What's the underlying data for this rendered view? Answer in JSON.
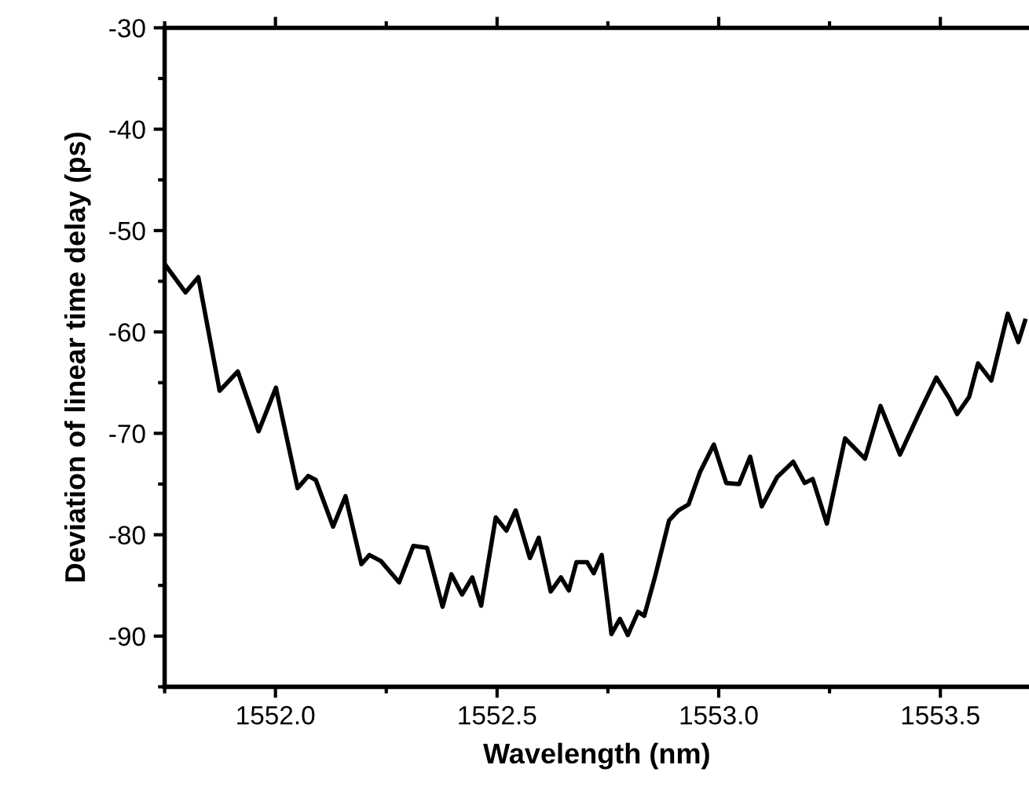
{
  "chart_data": {
    "type": "line",
    "xlabel": "Wavelength (nm)",
    "ylabel": "Deviation of linear time delay (ps)",
    "xlim": [
      1551.75,
      1553.7
    ],
    "ylim": [
      -95,
      -30
    ],
    "xticks": [
      {
        "value": 1552.0,
        "label": "1552.0"
      },
      {
        "value": 1552.5,
        "label": "1552.5"
      },
      {
        "value": 1553.0,
        "label": "1553.0"
      },
      {
        "value": 1553.5,
        "label": "1553.5"
      }
    ],
    "yticks": [
      -90,
      -80,
      -70,
      -60,
      -50,
      -40,
      -30
    ],
    "grid": false,
    "legend": false,
    "marker": "none",
    "line_style": "solid",
    "series": [
      {
        "color": "#000000",
        "x": [
          1551.75,
          1551.797,
          1551.826,
          1551.874,
          1551.915,
          1551.962,
          1552.001,
          1552.05,
          1552.074,
          1552.091,
          1552.13,
          1552.158,
          1552.194,
          1552.212,
          1552.238,
          1552.279,
          1552.311,
          1552.342,
          1552.377,
          1552.397,
          1552.421,
          1552.444,
          1552.464,
          1552.497,
          1552.521,
          1552.542,
          1552.574,
          1552.594,
          1552.621,
          1552.644,
          1552.662,
          1552.679,
          1552.703,
          1552.718,
          1552.736,
          1552.758,
          1552.777,
          1552.795,
          1552.818,
          1552.832,
          1552.856,
          1552.888,
          1552.909,
          1552.932,
          1552.958,
          1552.989,
          1553.017,
          1553.046,
          1553.071,
          1553.097,
          1553.132,
          1553.168,
          1553.194,
          1553.212,
          1553.244,
          1553.285,
          1553.33,
          1553.365,
          1553.409,
          1553.45,
          1553.491,
          1553.521,
          1553.538,
          1553.565,
          1553.585,
          1553.615,
          1553.652,
          1553.676,
          1553.691
        ],
        "values": [
          -53.3,
          -56.1,
          -54.6,
          -65.8,
          -63.9,
          -69.8,
          -65.5,
          -75.4,
          -74.2,
          -74.6,
          -79.2,
          -76.2,
          -82.9,
          -82.0,
          -82.6,
          -84.7,
          -81.1,
          -81.3,
          -87.1,
          -83.9,
          -85.9,
          -84.2,
          -87.0,
          -78.3,
          -79.6,
          -77.6,
          -82.3,
          -80.3,
          -85.6,
          -84.2,
          -85.5,
          -82.7,
          -82.7,
          -83.8,
          -82.0,
          -89.8,
          -88.3,
          -89.9,
          -87.6,
          -88.0,
          -84.2,
          -78.6,
          -77.6,
          -77.0,
          -73.8,
          -71.1,
          -74.9,
          -75.0,
          -72.3,
          -77.2,
          -74.3,
          -72.8,
          -74.9,
          -74.5,
          -78.9,
          -70.5,
          -72.5,
          -67.3,
          -72.1,
          -68.2,
          -64.5,
          -66.6,
          -68.1,
          -66.4,
          -63.1,
          -64.8,
          -58.2,
          -61.0,
          -58.9
        ]
      }
    ]
  }
}
